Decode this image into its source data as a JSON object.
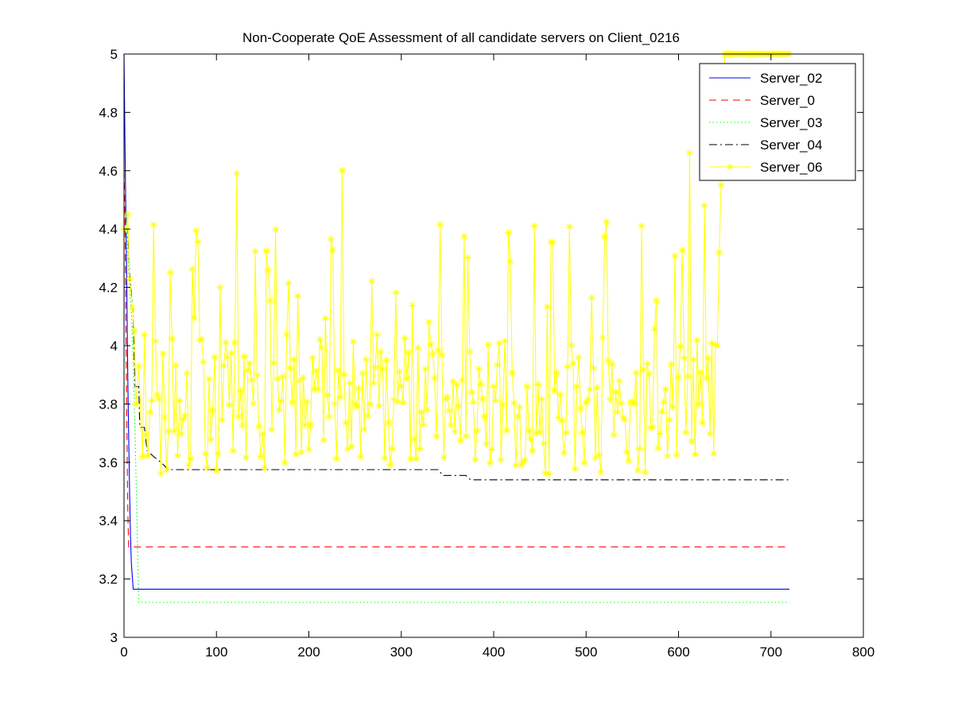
{
  "chart_data": {
    "type": "line",
    "title": "Non-Cooperate QoE Assessment of all candidate servers on Client_0216",
    "xlabel": "",
    "ylabel": "",
    "xlim": [
      0,
      800
    ],
    "ylim": [
      3,
      5
    ],
    "xticks": [
      "0",
      "100",
      "200",
      "300",
      "400",
      "500",
      "600",
      "700",
      "800"
    ],
    "yticks": [
      "3",
      "3.2",
      "3.4",
      "3.6",
      "3.8",
      "4",
      "4.2",
      "4.4",
      "4.6",
      "4.8",
      "5"
    ],
    "grid": false,
    "legend_position": "top-right",
    "series": [
      {
        "name": "Server_02",
        "color": "#0000ff",
        "style": "solid",
        "points": [
          [
            0,
            5.0
          ],
          [
            1,
            4.7
          ],
          [
            2,
            4.45
          ],
          [
            3,
            4.2
          ],
          [
            4,
            3.9
          ],
          [
            5,
            3.7
          ],
          [
            6,
            3.5
          ],
          [
            7,
            3.35
          ],
          [
            8,
            3.25
          ],
          [
            10,
            3.165
          ],
          [
            720,
            3.165
          ]
        ]
      },
      {
        "name": "Server_0",
        "color": "#ff0000",
        "style": "dashed",
        "points": [
          [
            0,
            4.6
          ],
          [
            1,
            4.45
          ],
          [
            2,
            4.1
          ],
          [
            3,
            3.75
          ],
          [
            4,
            3.45
          ],
          [
            5,
            3.31
          ],
          [
            720,
            3.31
          ]
        ]
      },
      {
        "name": "Server_03",
        "color": "#00ff00",
        "style": "dotted",
        "points": [
          [
            0,
            4.4
          ],
          [
            3,
            4.4
          ],
          [
            5,
            4.25
          ],
          [
            8,
            4.1
          ],
          [
            10,
            3.95
          ],
          [
            12,
            3.7
          ],
          [
            14,
            3.4
          ],
          [
            16,
            3.12
          ],
          [
            720,
            3.12
          ]
        ]
      },
      {
        "name": "Server_04",
        "color": "#000000",
        "style": "dashdot",
        "points": [
          [
            0,
            4.4
          ],
          [
            4,
            4.4
          ],
          [
            6,
            4.25
          ],
          [
            10,
            4.1
          ],
          [
            12,
            3.86
          ],
          [
            16,
            3.86
          ],
          [
            17,
            3.72
          ],
          [
            22,
            3.72
          ],
          [
            25,
            3.64
          ],
          [
            32,
            3.62
          ],
          [
            40,
            3.6
          ],
          [
            48,
            3.575
          ],
          [
            100,
            3.575
          ],
          [
            200,
            3.575
          ],
          [
            340,
            3.575
          ],
          [
            345,
            3.555
          ],
          [
            370,
            3.555
          ],
          [
            375,
            3.54
          ],
          [
            720,
            3.54
          ]
        ]
      },
      {
        "name": "Server_06",
        "color": "#ffff00",
        "style": "solid-star",
        "generated": true,
        "range": [
          3.54,
          4.66
        ]
      }
    ]
  }
}
